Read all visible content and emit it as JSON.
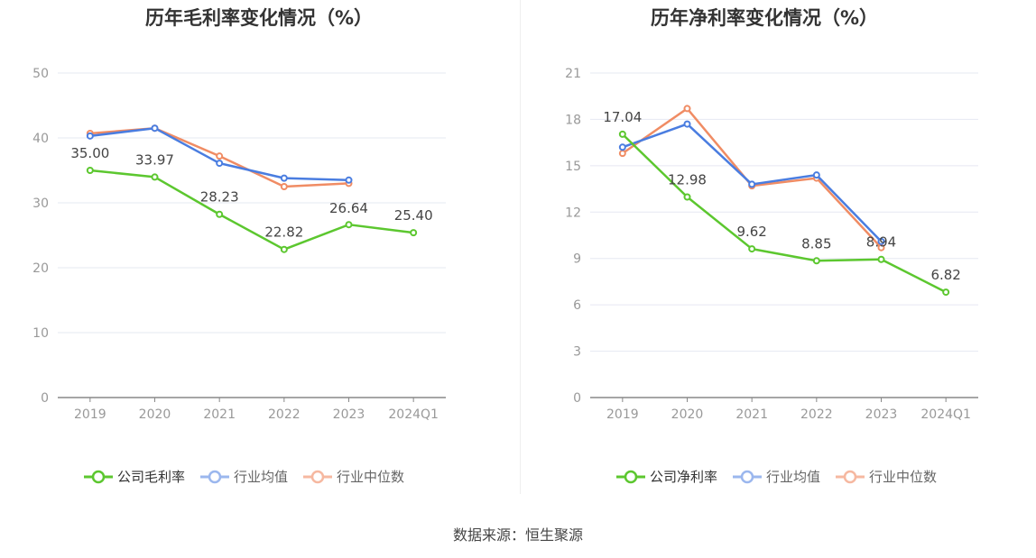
{
  "chart_data": [
    {
      "type": "line",
      "title": "历年毛利率变化情况（%）",
      "categories": [
        "2019",
        "2020",
        "2021",
        "2022",
        "2023",
        "2024Q1"
      ],
      "ylim": [
        0,
        50
      ],
      "yticks": [
        0,
        10,
        20,
        30,
        40,
        50
      ],
      "grid": true,
      "legend_position": "bottom",
      "series": [
        {
          "name": "公司毛利率",
          "color": "#5cc72f",
          "values": [
            35.0,
            33.97,
            28.23,
            22.82,
            26.64,
            25.4
          ],
          "labels": [
            "35.00",
            "33.97",
            "28.23",
            "22.82",
            "26.64",
            "25.40"
          ]
        },
        {
          "name": "行业均值",
          "color": "#4a7de0",
          "values": [
            40.3,
            41.5,
            36.1,
            33.8,
            33.5,
            null
          ]
        },
        {
          "name": "行业中位数",
          "color": "#f08c64",
          "values": [
            40.7,
            41.5,
            37.2,
            32.5,
            33.0,
            null
          ]
        }
      ]
    },
    {
      "type": "line",
      "title": "历年净利率变化情况（%）",
      "categories": [
        "2019",
        "2020",
        "2021",
        "2022",
        "2023",
        "2024Q1"
      ],
      "ylim": [
        0,
        21
      ],
      "yticks": [
        0,
        3,
        6,
        9,
        12,
        15,
        18,
        21
      ],
      "grid": true,
      "legend_position": "bottom",
      "series": [
        {
          "name": "公司净利率",
          "color": "#5cc72f",
          "values": [
            17.04,
            12.98,
            9.62,
            8.85,
            8.94,
            6.82
          ],
          "labels": [
            "17.04",
            "12.98",
            "9.62",
            "8.85",
            "8.94",
            "6.82"
          ]
        },
        {
          "name": "行业均值",
          "color": "#4a7de0",
          "values": [
            16.2,
            17.7,
            13.8,
            14.4,
            10.1,
            null
          ]
        },
        {
          "name": "行业中位数",
          "color": "#f08c64",
          "values": [
            15.8,
            18.7,
            13.7,
            14.2,
            9.7,
            null
          ]
        }
      ]
    }
  ],
  "source": "数据来源：恒生聚源"
}
